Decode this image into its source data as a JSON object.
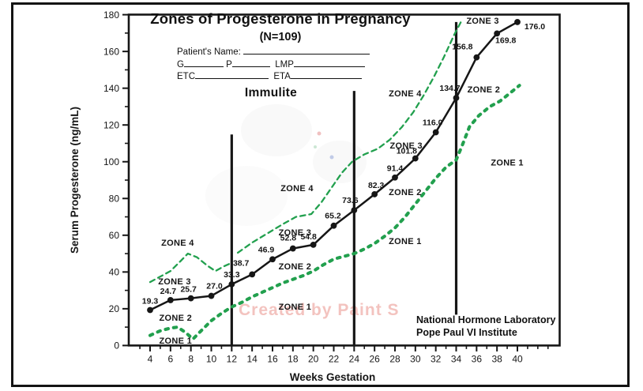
{
  "title": "Zones of Progesterone in Pregnancy",
  "subtitle": "(N=109)",
  "assay_label": "Immulite",
  "watermark": "Created by Paint S",
  "patient_form": {
    "name_label": "Patient's Name:",
    "gravida_label": "G",
    "para_label": "P",
    "lmp_label": "LMP",
    "etc_label": "ETC",
    "eta_label": "ETA"
  },
  "footer": {
    "line1": "National Hormone Laboratory",
    "line2": "Pope Paul VI Institute"
  },
  "colors": {
    "ink": "#161616",
    "zone_boundary_green": "#22a04e",
    "watermark_pink": "#f3c3bf"
  },
  "chart_data": {
    "type": "line",
    "title": "Zones of Progesterone in Pregnancy (N=109)",
    "xlabel": "Weeks Gestation",
    "ylabel": "Serum Progesterone (ng/mL)",
    "xlim": [
      2,
      44
    ],
    "ylim": [
      0,
      180
    ],
    "x_ticks": [
      4,
      6,
      8,
      10,
      12,
      14,
      16,
      18,
      20,
      22,
      24,
      26,
      28,
      30,
      32,
      34,
      36,
      38,
      40
    ],
    "y_ticks": [
      0,
      20,
      40,
      60,
      80,
      100,
      120,
      140,
      160,
      180
    ],
    "x_minor_step": 1,
    "y_minor_step": 10,
    "grid": false,
    "legend": "none",
    "series": [
      {
        "name": "Immulite mean serum progesterone",
        "style": "black-solid-markers",
        "x": [
          4,
          6,
          8,
          10,
          12,
          14,
          16,
          18,
          20,
          22,
          24,
          26,
          28,
          30,
          32,
          34,
          36,
          38,
          40
        ],
        "values": [
          19.3,
          24.7,
          25.7,
          27.0,
          33.3,
          38.7,
          46.9,
          52.8,
          54.8,
          65.2,
          73.6,
          82.3,
          91.4,
          101.8,
          116.0,
          134.7,
          156.8,
          169.8,
          176.0
        ],
        "point_labels": [
          "19.3",
          "24.7",
          "25.7",
          "27.0",
          "33.3",
          "38.7",
          "46.9",
          "52.8",
          "54.8",
          "65.2",
          "73.6",
          "82.3",
          "91.4",
          "101.8",
          "116.0",
          "134.7",
          "156.8",
          "169.8",
          "176.0"
        ],
        "label_offsets": [
          [
            0,
            -8
          ],
          [
            -3,
            -8
          ],
          [
            -3,
            -8
          ],
          [
            4,
            -9
          ],
          [
            0,
            -9
          ],
          [
            -14,
            -11
          ],
          [
            -8,
            -9
          ],
          [
            -6,
            -10
          ],
          [
            -6,
            -7
          ],
          [
            -1,
            -9
          ],
          [
            -5,
            -9
          ],
          [
            2,
            -8
          ],
          [
            0,
            -8
          ],
          [
            -11,
            -6
          ],
          [
            -4,
            -9
          ],
          [
            -8,
            -9
          ],
          [
            -18,
            -10
          ],
          [
            11,
            12
          ],
          [
            22,
            9
          ]
        ]
      },
      {
        "name": "upper zone boundary (Zone 3 / Zone 4)",
        "style": "green-dashed-thin",
        "segments": [
          [
            [
              4,
              34.5
            ],
            [
              5,
              37.5
            ],
            [
              6,
              40.5
            ],
            [
              7,
              46
            ],
            [
              7.7,
              50
            ],
            [
              8.6,
              48
            ],
            [
              9.6,
              43.5
            ],
            [
              10.4,
              40.5
            ],
            [
              11.2,
              43
            ],
            [
              12,
              45
            ]
          ],
          [
            [
              12.6,
              50.5
            ],
            [
              14,
              56
            ],
            [
              15.5,
              61
            ],
            [
              17,
              66
            ],
            [
              18.3,
              70
            ],
            [
              19.8,
              71.5
            ],
            [
              20.8,
              78
            ],
            [
              21.8,
              86
            ],
            [
              22.8,
              94
            ],
            [
              23.8,
              100
            ],
            [
              25,
              104
            ],
            [
              26.3,
              107
            ],
            [
              27.5,
              112
            ],
            [
              28.7,
              119
            ],
            [
              29.8,
              127
            ],
            [
              30.8,
              136
            ],
            [
              31.8,
              146
            ],
            [
              32.8,
              157
            ],
            [
              33.8,
              169
            ],
            [
              34.6,
              177.5
            ]
          ]
        ]
      },
      {
        "name": "lower zone boundary (Zone 1 / Zone 2)",
        "style": "green-dotted-thick",
        "segments": [
          [
            [
              4,
              5.5
            ],
            [
              5,
              8
            ],
            [
              6,
              9.5
            ],
            [
              6.7,
              10
            ],
            [
              7.5,
              7
            ],
            [
              8.2,
              3.5
            ],
            [
              9,
              8
            ],
            [
              10,
              13.5
            ],
            [
              11,
              17.5
            ],
            [
              12,
              21
            ],
            [
              13,
              23.5
            ],
            [
              14,
              26.5
            ],
            [
              15,
              29
            ],
            [
              16,
              31.5
            ],
            [
              17,
              34
            ],
            [
              18,
              36
            ],
            [
              19,
              38
            ],
            [
              20,
              40.5
            ],
            [
              21,
              44
            ],
            [
              22,
              47
            ],
            [
              23,
              48.5
            ],
            [
              24,
              50
            ],
            [
              25,
              52.5
            ],
            [
              26,
              55.5
            ],
            [
              27,
              59.5
            ],
            [
              28,
              64
            ],
            [
              29,
              70
            ],
            [
              30,
              77
            ],
            [
              31,
              84
            ],
            [
              32,
              91
            ],
            [
              33,
              97
            ],
            [
              34,
              101
            ],
            [
              34.6,
              109
            ],
            [
              35.3,
              119
            ],
            [
              36.2,
              125
            ],
            [
              37.3,
              130
            ],
            [
              38.3,
              133
            ],
            [
              39.2,
              137
            ],
            [
              40.2,
              141.5
            ]
          ]
        ]
      }
    ],
    "vertical_dividers": [
      {
        "x": 12,
        "from": 0,
        "to": 114.8
      },
      {
        "x": 24,
        "from": 0,
        "to": 138.5
      },
      {
        "x": 34,
        "from": 16.8,
        "to": 176
      }
    ],
    "zone_labels": [
      {
        "text": "ZONE 4",
        "week": 6.7,
        "value": 56
      },
      {
        "text": "ZONE 3",
        "week": 6.4,
        "value": 35
      },
      {
        "text": "ZONE 2",
        "week": 6.5,
        "value": 15.2
      },
      {
        "text": "ZONE 1",
        "week": 6.5,
        "value": 2.8
      },
      {
        "text": "ZONE 4",
        "week": 18.4,
        "value": 85.7
      },
      {
        "text": "ZONE 3",
        "week": 18.2,
        "value": 61.6
      },
      {
        "text": "ZONE 2",
        "week": 18.2,
        "value": 43.1
      },
      {
        "text": "ZONE 1",
        "week": 18.2,
        "value": 21.3
      },
      {
        "text": "ZONE 4",
        "week": 29.0,
        "value": 137.2
      },
      {
        "text": "ZONE 3",
        "week": 29.1,
        "value": 108.9
      },
      {
        "text": "ZONE 2",
        "week": 29.0,
        "value": 83.5
      },
      {
        "text": "ZONE 1",
        "week": 29.0,
        "value": 56.9
      },
      {
        "text": "ZONE 3",
        "week": 36.6,
        "value": 176.8
      },
      {
        "text": "ZONE 2",
        "week": 36.7,
        "value": 139.4
      },
      {
        "text": "ZONE 1",
        "week": 39.0,
        "value": 99.7
      }
    ]
  }
}
